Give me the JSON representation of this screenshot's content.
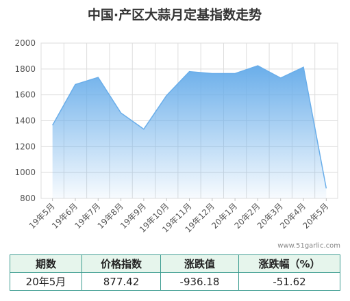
{
  "chart_data": {
    "type": "area",
    "title": "中国·产区大蒜月定基指数走势",
    "categories": [
      "19年5月",
      "19年6月",
      "19年7月",
      "19年8月",
      "19年9月",
      "19年10月",
      "19年11月",
      "19年12月",
      "20年1月",
      "20年2月",
      "20年3月",
      "20年4月",
      "20年5月"
    ],
    "values": [
      1365,
      1680,
      1735,
      1460,
      1335,
      1595,
      1780,
      1765,
      1765,
      1825,
      1730,
      1813.6,
      877.42
    ],
    "color": "#6aaeea",
    "ylim": [
      800,
      2000
    ],
    "yticks": [
      800,
      1000,
      1200,
      1400,
      1600,
      1800,
      2000
    ],
    "grid": true,
    "watermark": "www.51garlic.com"
  },
  "table": {
    "header": [
      "期数",
      "价格指数",
      "涨跌值",
      "涨跌幅（%）"
    ],
    "rows": [
      [
        "20年5月",
        877.42,
        -936.18,
        -51.62
      ]
    ]
  }
}
